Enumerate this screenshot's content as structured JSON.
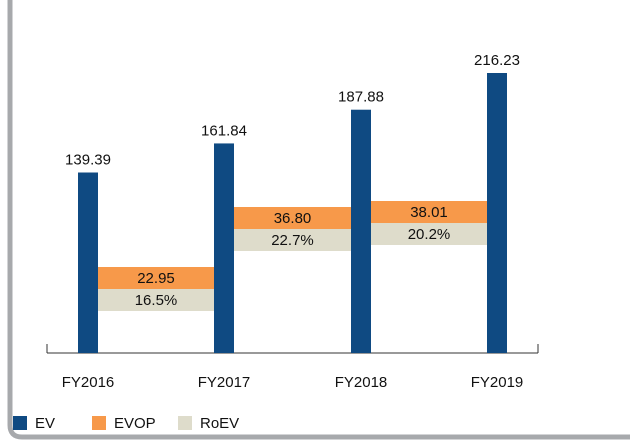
{
  "chart_data": {
    "type": "bar",
    "categories": [
      "FY2016",
      "FY2017",
      "FY2018",
      "FY2019"
    ],
    "series": [
      {
        "name": "EV",
        "color": "#0f4a82",
        "values": [
          139.39,
          161.84,
          187.88,
          216.23
        ]
      },
      {
        "name": "EVOP",
        "color": "#f7994a",
        "values": [
          null,
          22.95,
          36.8,
          38.01
        ],
        "value_labels": [
          null,
          "22.95",
          "36.80",
          "38.01"
        ]
      },
      {
        "name": "RoEV",
        "color": "#dedccb",
        "values": [
          null,
          16.5,
          22.7,
          20.2
        ],
        "value_labels": [
          null,
          "16.5%",
          "22.7%",
          "20.2%"
        ]
      }
    ]
  }
}
